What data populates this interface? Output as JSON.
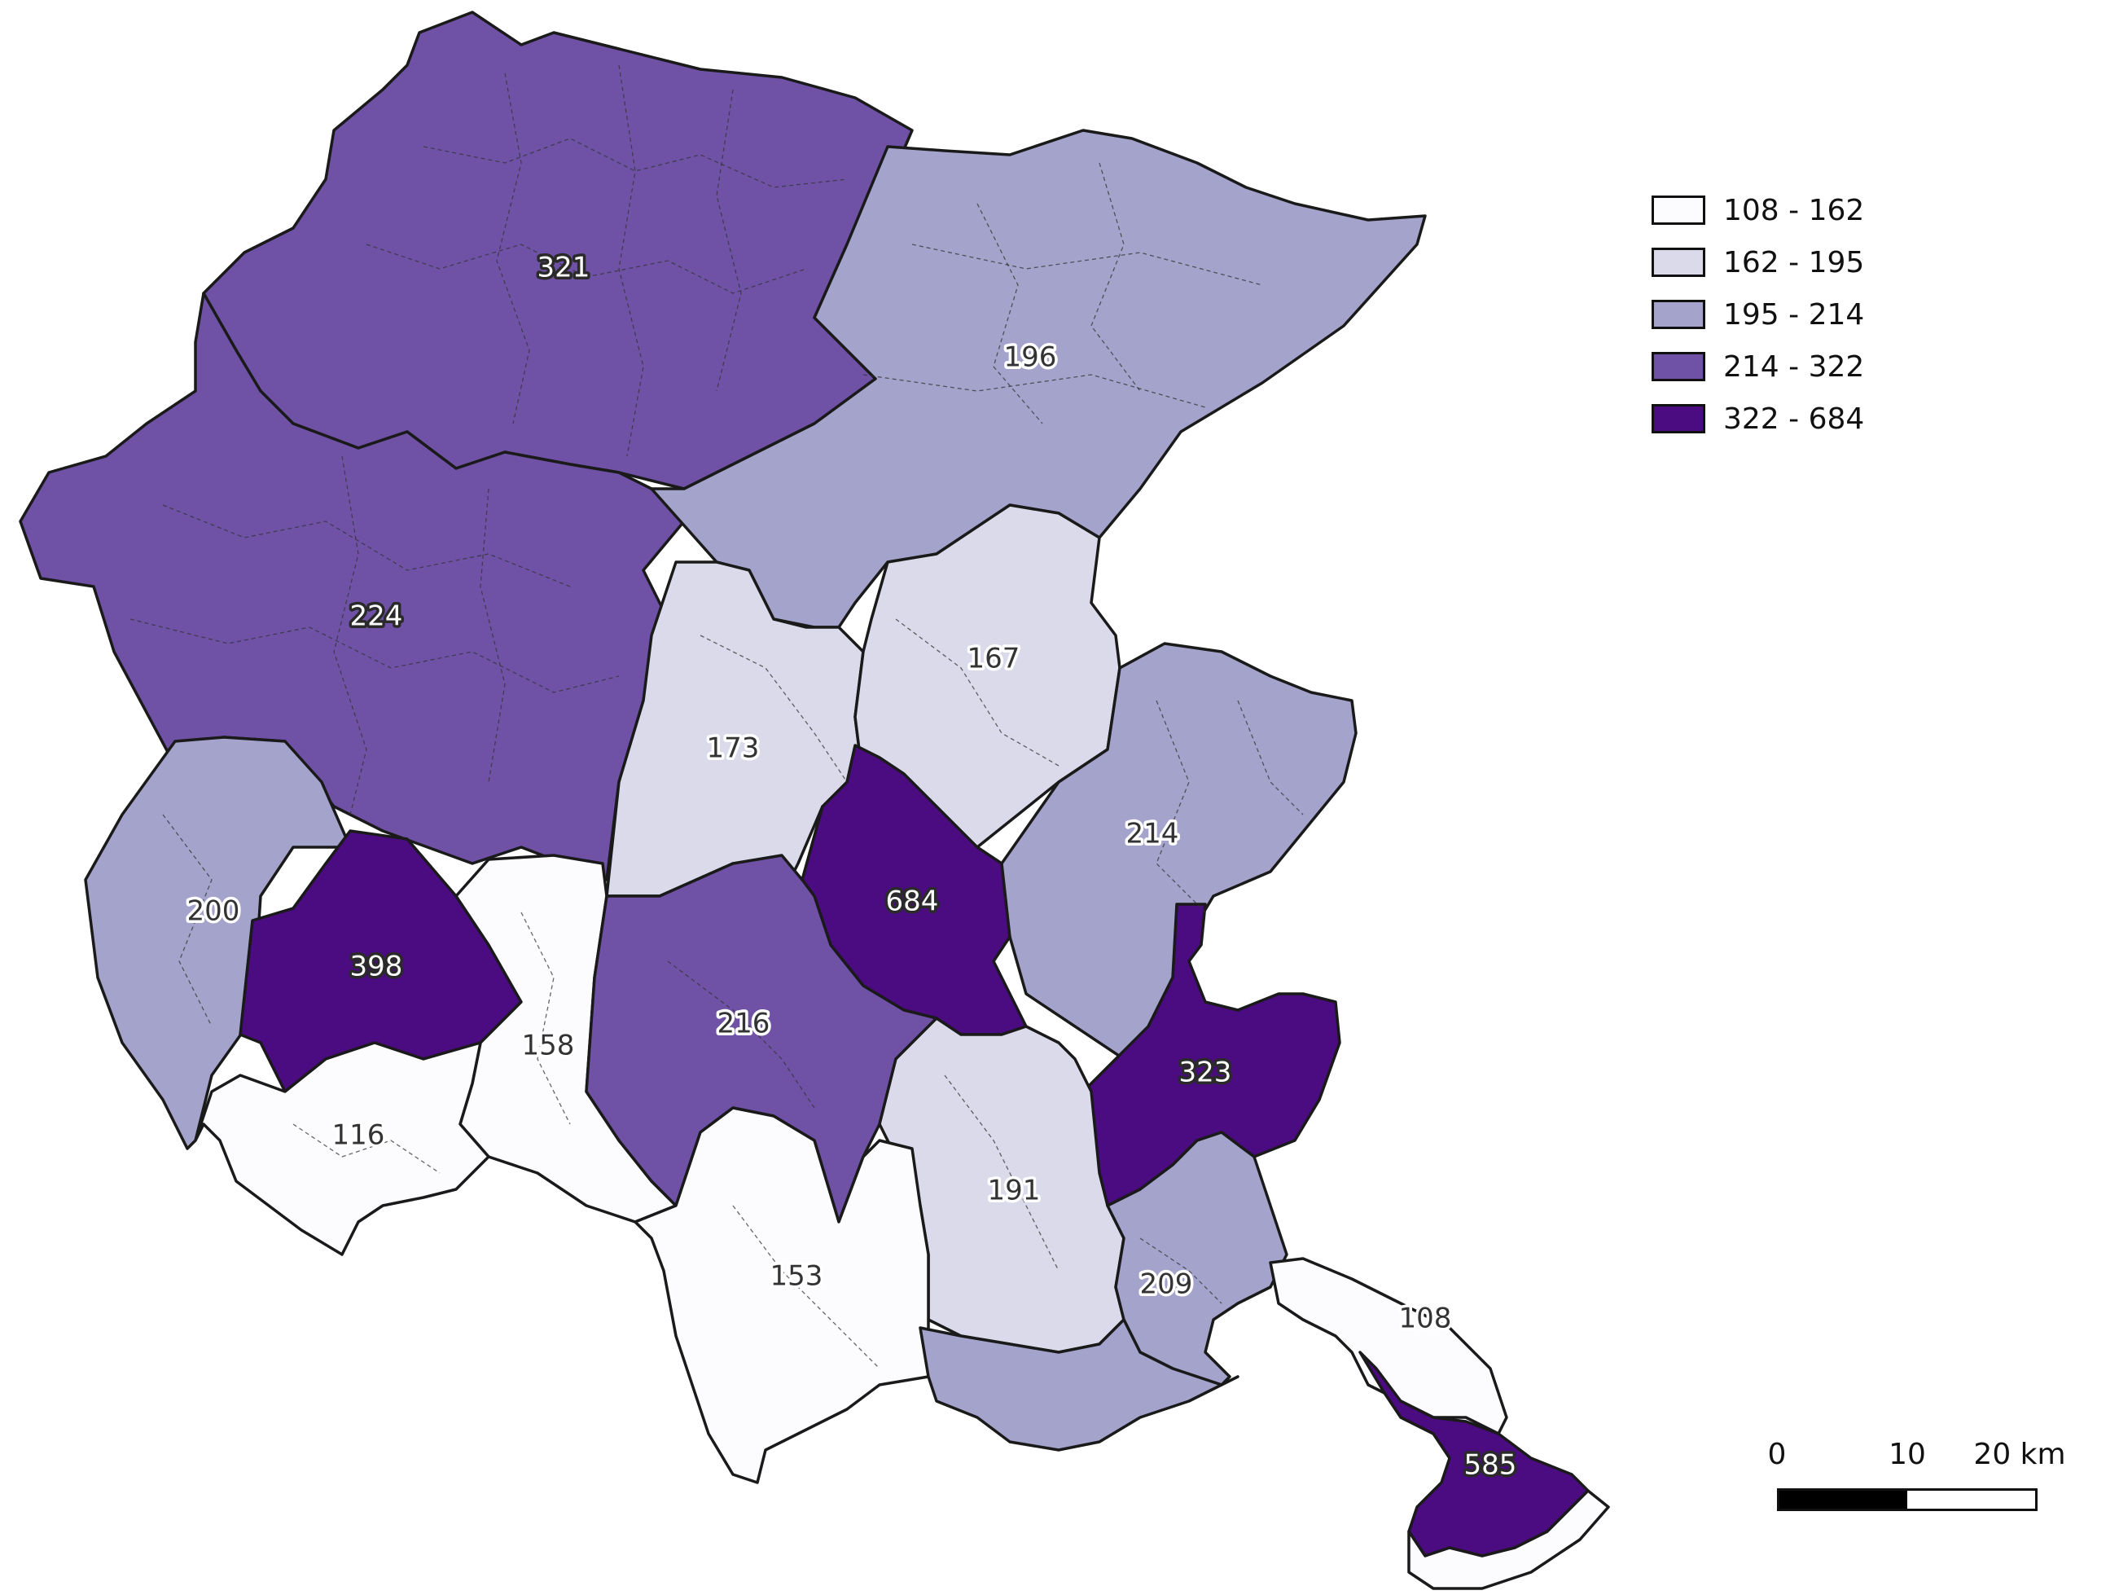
{
  "colors": {
    "class1": "#fcfbfd",
    "class2": "#dadaeb",
    "class3": "#a4a3cc",
    "class4": "#6f52a6",
    "class5": "#4b0b81",
    "outline": "#1a1a1a"
  },
  "legend": {
    "items": [
      {
        "label": "108 - 162",
        "color": "#fcfbfd"
      },
      {
        "label": "162 - 195",
        "color": "#dadaeb"
      },
      {
        "label": "195 - 214",
        "color": "#a4a3cc"
      },
      {
        "label": "214 - 322",
        "color": "#6f52a6"
      },
      {
        "label": "322 - 684",
        "color": "#4b0b81"
      }
    ]
  },
  "regions": {
    "r321": "321",
    "r196": "196",
    "r224": "224",
    "r167": "167",
    "r173": "173",
    "r214": "214",
    "r684": "684",
    "r200": "200",
    "r398": "398",
    "r158": "158",
    "r216": "216",
    "r323": "323",
    "r116": "116",
    "r191": "191",
    "r153": "153",
    "r209": "209",
    "r108": "108",
    "r585": "585"
  },
  "scale": {
    "tick0": "0",
    "tick1": "10",
    "tick2": "20 km"
  }
}
